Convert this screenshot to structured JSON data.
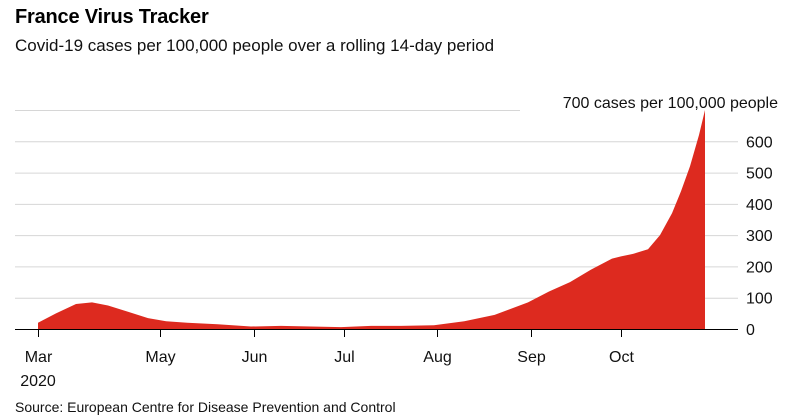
{
  "title": "France Virus Tracker",
  "subtitle": "Covid-19 cases per 100,000 people over a rolling 14-day period",
  "source": "Source: European Centre for Disease Prevention and Control",
  "chart_data": {
    "type": "area",
    "color": "#dd2a1f",
    "ylim": [
      0,
      700
    ],
    "annotation": "700 cases per 100,000 people",
    "x_ticks": [
      "Mar",
      "May",
      "Jun",
      "Jul",
      "Aug",
      "Sep",
      "Oct"
    ],
    "x_year_label": "2020",
    "y_ticks": [
      "0",
      "100",
      "200",
      "300",
      "400",
      "500",
      "600"
    ],
    "grid": "horizontal",
    "x": [
      "2020-03-01",
      "2020-03-10",
      "2020-03-20",
      "2020-03-28",
      "2020-04-05",
      "2020-04-15",
      "2020-04-25",
      "2020-05-03",
      "2020-05-10",
      "2020-05-20",
      "2020-05-31",
      "2020-06-10",
      "2020-06-20",
      "2020-06-30",
      "2020-07-10",
      "2020-07-20",
      "2020-07-31",
      "2020-08-10",
      "2020-08-20",
      "2020-08-31",
      "2020-09-07",
      "2020-09-14",
      "2020-09-21",
      "2020-09-28",
      "2020-10-01",
      "2020-10-05",
      "2020-10-10",
      "2020-10-14",
      "2020-10-18",
      "2020-10-21",
      "2020-10-24",
      "2020-10-27",
      "2020-10-29"
    ],
    "values": [
      20,
      50,
      80,
      85,
      75,
      55,
      35,
      25,
      20,
      15,
      8,
      10,
      8,
      6,
      10,
      10,
      12,
      25,
      45,
      85,
      120,
      150,
      190,
      225,
      232,
      240,
      255,
      300,
      370,
      440,
      520,
      620,
      700
    ]
  }
}
